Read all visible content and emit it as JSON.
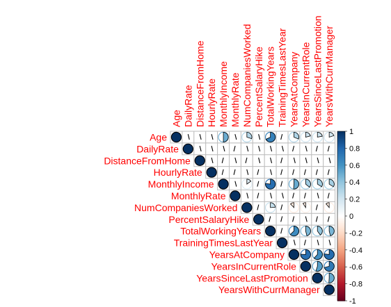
{
  "chart_data": {
    "type": "heatmap",
    "style": "corrplot upper-triangle pie glyphs",
    "variables": [
      "Age",
      "DailyRate",
      "DistanceFromHome",
      "HourlyRate",
      "MonthlyIncome",
      "MonthlyRate",
      "NumCompaniesWorked",
      "PercentSalaryHike",
      "TotalWorkingYears",
      "TrainingTimesLastYear",
      "YearsAtCompany",
      "YearsInCurrentRole",
      "YearsSinceLastPromotion",
      "YearsWithCurrManager"
    ],
    "matrix": [
      [
        1,
        0.01,
        0.0,
        0.02,
        0.5,
        0.03,
        0.3,
        0.0,
        0.68,
        -0.02,
        0.31,
        0.21,
        0.22,
        0.2
      ],
      [
        0.01,
        1,
        0.0,
        0.02,
        0.01,
        -0.03,
        0.04,
        0.02,
        0.01,
        0.0,
        -0.03,
        0.01,
        -0.03,
        -0.03
      ],
      [
        0.0,
        0.0,
        1,
        0.03,
        -0.02,
        0.03,
        -0.03,
        0.04,
        0.0,
        -0.04,
        0.01,
        0.02,
        0.01,
        0.01
      ],
      [
        0.02,
        0.02,
        0.03,
        1,
        -0.02,
        -0.02,
        0.02,
        -0.01,
        0.0,
        -0.01,
        -0.02,
        -0.02,
        -0.03,
        -0.02
      ],
      [
        0.5,
        0.01,
        -0.02,
        -0.02,
        1,
        0.03,
        0.15,
        -0.03,
        0.77,
        -0.02,
        0.51,
        0.36,
        0.34,
        0.34
      ],
      [
        0.03,
        -0.03,
        0.03,
        -0.02,
        0.03,
        1,
        0.02,
        -0.01,
        0.03,
        0.0,
        -0.02,
        -0.01,
        0.0,
        -0.04
      ],
      [
        0.3,
        0.04,
        -0.03,
        0.02,
        0.15,
        0.02,
        1,
        -0.01,
        0.24,
        -0.07,
        -0.12,
        -0.09,
        -0.04,
        -0.11
      ],
      [
        0.0,
        0.02,
        0.04,
        -0.01,
        -0.03,
        -0.01,
        -0.01,
        1,
        -0.02,
        -0.01,
        -0.04,
        0.0,
        -0.02,
        -0.01
      ],
      [
        0.68,
        0.01,
        0.0,
        0.0,
        0.77,
        0.03,
        0.24,
        -0.02,
        1,
        -0.04,
        0.63,
        0.46,
        0.4,
        0.46
      ],
      [
        -0.02,
        0.0,
        -0.04,
        -0.01,
        -0.02,
        0.0,
        -0.07,
        -0.01,
        -0.04,
        1,
        0.0,
        -0.01,
        0.0,
        -0.0
      ],
      [
        0.31,
        -0.03,
        0.01,
        -0.02,
        0.51,
        -0.02,
        -0.12,
        -0.04,
        0.63,
        0.0,
        1,
        0.76,
        0.62,
        0.77
      ],
      [
        0.21,
        0.01,
        0.02,
        -0.02,
        0.36,
        -0.01,
        -0.09,
        0.0,
        0.46,
        -0.01,
        0.76,
        1,
        0.55,
        0.71
      ],
      [
        0.22,
        -0.03,
        0.01,
        -0.03,
        0.34,
        0.0,
        -0.04,
        -0.02,
        0.4,
        0.0,
        0.62,
        0.55,
        1,
        0.51
      ],
      [
        0.2,
        -0.03,
        0.01,
        -0.02,
        0.34,
        -0.04,
        -0.11,
        -0.01,
        0.46,
        -0.0,
        0.77,
        0.71,
        0.51,
        1
      ]
    ],
    "colorbar": {
      "range": [
        -1,
        1
      ],
      "ticks": [
        "1",
        "0.8",
        "0.6",
        "0.4",
        "0.2",
        "0",
        "-0.2",
        "-0.4",
        "-0.6",
        "-0.8",
        "-1"
      ],
      "low_color": "#67001f",
      "mid_color": "#ffffff",
      "high_color": "#053061"
    },
    "label_color": "#ff0000",
    "grid_color": "#bebebe"
  }
}
